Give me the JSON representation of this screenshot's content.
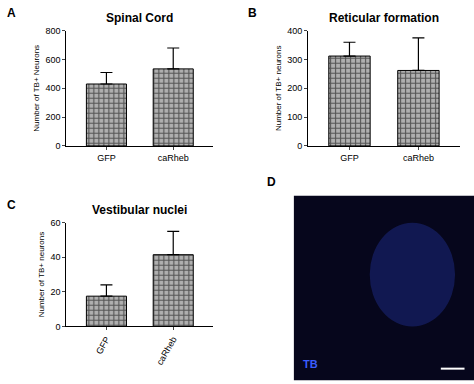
{
  "chart_data": [
    {
      "type": "bar",
      "panel_label": "A",
      "title": "Spinal Cord",
      "y_label": "Number of TB+ Neurons",
      "categories": [
        "GFP",
        "caRheb"
      ],
      "values": [
        430,
        535
      ],
      "errors": [
        80,
        145
      ],
      "color": "#b0b0b0",
      "ylim": [
        0,
        800
      ],
      "yticks": [
        0,
        200,
        400,
        600,
        800
      ],
      "grid": false
    },
    {
      "type": "bar",
      "panel_label": "B",
      "title": "Reticular formation",
      "y_label": "Number of TB+ neurons",
      "categories": [
        "GFP",
        "caRheb"
      ],
      "values": [
        312,
        262
      ],
      "errors": [
        48,
        113
      ],
      "color": "#b0b0b0",
      "ylim": [
        0,
        400
      ],
      "yticks": [
        0,
        100,
        200,
        300,
        400
      ],
      "grid": false
    },
    {
      "type": "bar",
      "panel_label": "C",
      "title": "Vestibular nuclei",
      "y_label": "Number of TB+ neurons",
      "categories": [
        "GFP",
        "caRheb"
      ],
      "values": [
        17.5,
        41.5
      ],
      "errors": [
        6.5,
        13.5
      ],
      "color": "#b0b0b0",
      "ylim": [
        0,
        60
      ],
      "yticks": [
        0,
        20,
        40,
        60
      ],
      "grid": false
    }
  ],
  "image_panel": {
    "panel_label": "D",
    "text": "TB"
  }
}
